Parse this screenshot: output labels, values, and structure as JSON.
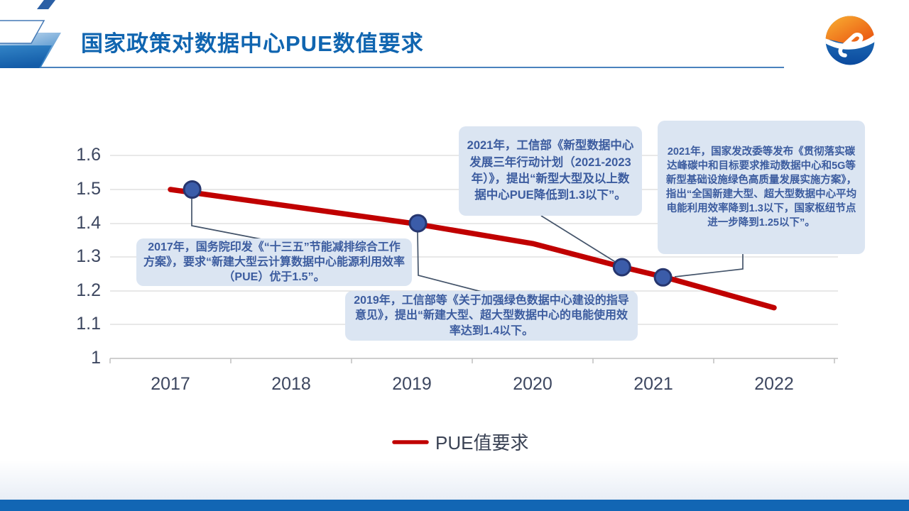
{
  "header": {
    "title": "国家政策对数据中心PUE数值要求"
  },
  "chart_data": {
    "type": "line",
    "title": "国家政策对数据中心PUE数值要求",
    "xlabel": "",
    "ylabel": "",
    "x_ticks": [
      "2017",
      "2018",
      "2019",
      "2020",
      "2021",
      "2022"
    ],
    "y_ticks": [
      "1.6",
      "1.5",
      "1.4",
      "1.3",
      "1.2",
      "1.1",
      "1"
    ],
    "y_range": [
      1.0,
      1.65
    ],
    "grid": true,
    "line_color": "#c00000",
    "marker_color": "#3b5ca9",
    "marker_edge_color": "#26366f",
    "series": [
      {
        "name": "PUE值要求",
        "color": "#c00000",
        "points": [
          [
            2017,
            1.5
          ],
          [
            2018,
            1.45
          ],
          [
            2019,
            1.4
          ],
          [
            2020,
            1.34
          ],
          [
            2020.75,
            1.27
          ],
          [
            2021.1,
            1.24
          ],
          [
            2022,
            1.15
          ]
        ]
      }
    ],
    "markers": [
      {
        "year": 2017.18,
        "value": 1.5
      },
      {
        "year": 2019.05,
        "value": 1.4
      },
      {
        "year": 2020.74,
        "value": 1.27
      },
      {
        "year": 2021.08,
        "value": 1.24
      }
    ],
    "legend": {
      "label": "PUE值要求",
      "position": "bottom"
    }
  },
  "annotations": {
    "a2017": "2017年，国务院印发《“十三五”节能减排综合工作方案》，要求“新建大型云计算数据中心能源利用效率（PUE）优于1.5”。",
    "a2019": "2019年，工信部等《关于加强绿色数据中心建设的指导意见》，提出“新建大型、超大型数据中心的电能使用效率达到1.4以下。",
    "a2021_miit": "2021年，工信部《新型数据中心发展三年行动计划（2021-2023年）》，提出“新型大型及以上数据中心PUE降低到1.3以下”。",
    "a2021_ndrc": "2021年，国家发改委等发布《贯彻落实碳达峰碳中和目标要求推动数据中心和5G等新型基础设施绿色高质量发展实施方案》，指出“全国新建大型、超大型数据中心平均电能利用效率降到1.3以下，国家枢纽节点进一步降到1.25以下”。"
  }
}
